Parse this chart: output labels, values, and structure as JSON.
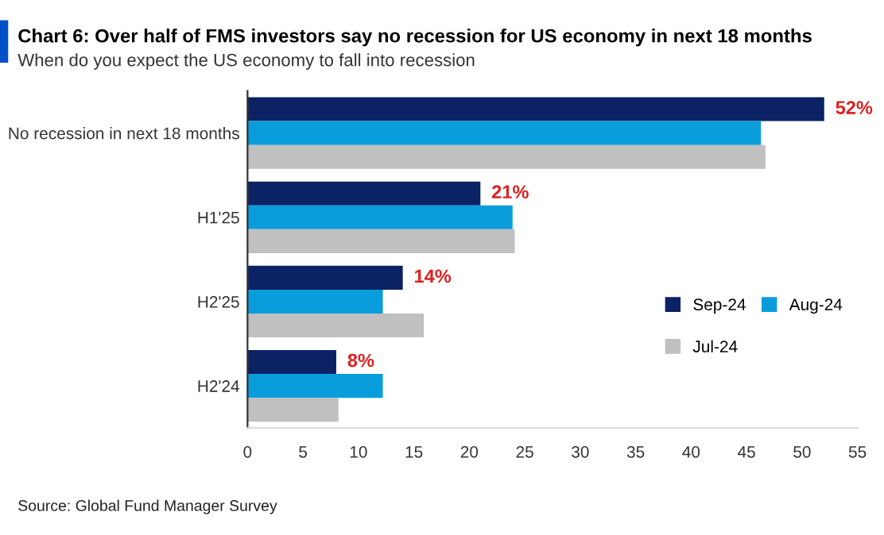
{
  "chart_data": {
    "type": "bar",
    "orientation": "horizontal",
    "title": "Chart 6: Over half of FMS investors say no recession for US economy in next 18 months",
    "subtitle": "When do you expect the US economy to fall into recession",
    "categories": [
      "No recession in next 18 months",
      "H1'25",
      "H2'25",
      "H2'24"
    ],
    "series": [
      {
        "name": "Sep-24",
        "color": "#0b2265",
        "values": [
          52,
          21,
          14,
          8
        ],
        "value_labels": [
          "52%",
          "21%",
          "14%",
          "8%"
        ]
      },
      {
        "name": "Aug-24",
        "color": "#0a9ddb",
        "values": [
          46.3,
          23.9,
          12.2,
          12.2
        ]
      },
      {
        "name": "Jul-24",
        "color": "#c0c0c0",
        "values": [
          46.7,
          24.1,
          15.9,
          8.2
        ]
      }
    ],
    "xlim": [
      0,
      55
    ],
    "xticks": [
      0,
      5,
      10,
      15,
      20,
      25,
      30,
      35,
      40,
      45,
      50,
      55
    ],
    "grid": false,
    "legend": "right",
    "annotations": [
      "Source: Global Fund Manager Survey"
    ]
  }
}
